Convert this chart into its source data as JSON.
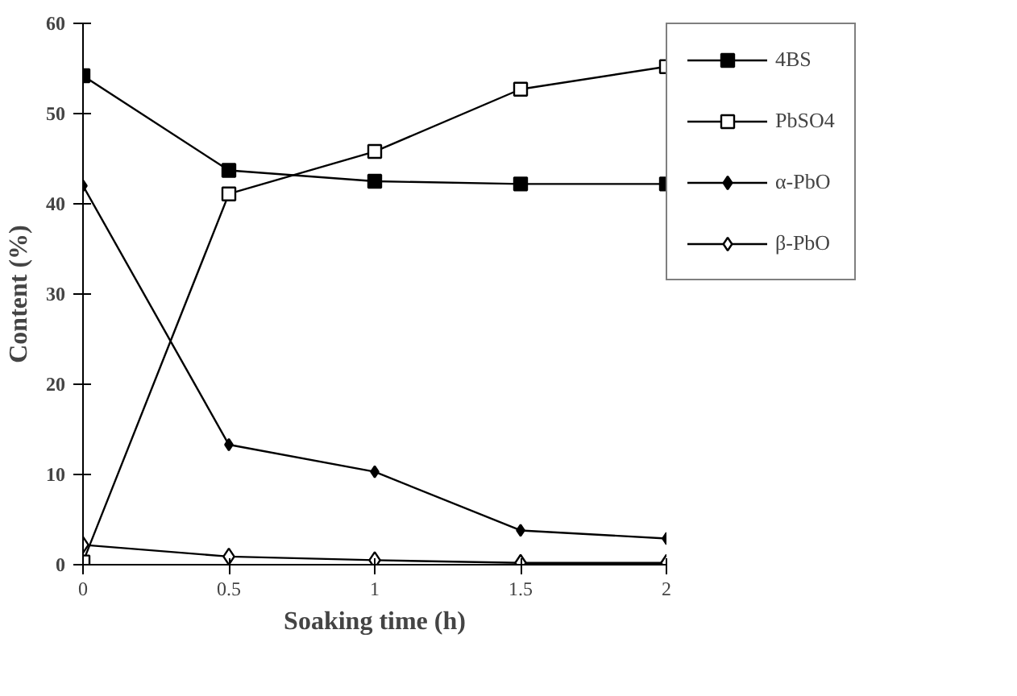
{
  "chart_data": {
    "type": "line",
    "xlabel": "Soaking time (h)",
    "ylabel": "Content (%)",
    "x": [
      0,
      0.5,
      1,
      1.5,
      2
    ],
    "xlim": [
      0,
      2
    ],
    "xticks": [
      0,
      0.5,
      1,
      1.5,
      2
    ],
    "ylim": [
      0,
      60
    ],
    "yticks": [
      0,
      10,
      20,
      30,
      40,
      50,
      60
    ],
    "grid": false,
    "legend": "right",
    "line_style": "solid",
    "series": [
      {
        "name": "4BS",
        "color": "#000000",
        "marker": "square",
        "values": [
          54.2,
          43.7,
          42.5,
          42.2,
          42.2
        ]
      },
      {
        "name": "PbSO4",
        "color": "#000000",
        "marker": "square",
        "values": [
          0.3,
          41.1,
          45.8,
          52.7,
          55.2
        ]
      },
      {
        "name": "α-PbO",
        "color": "#000000",
        "marker": "diamond",
        "values": [
          42.0,
          13.3,
          10.3,
          3.8,
          2.9
        ]
      },
      {
        "name": "β-PbO",
        "color": "#000000",
        "marker": "diamond",
        "values": [
          2.2,
          0.9,
          0.5,
          0.2,
          0.2
        ]
      }
    ]
  }
}
